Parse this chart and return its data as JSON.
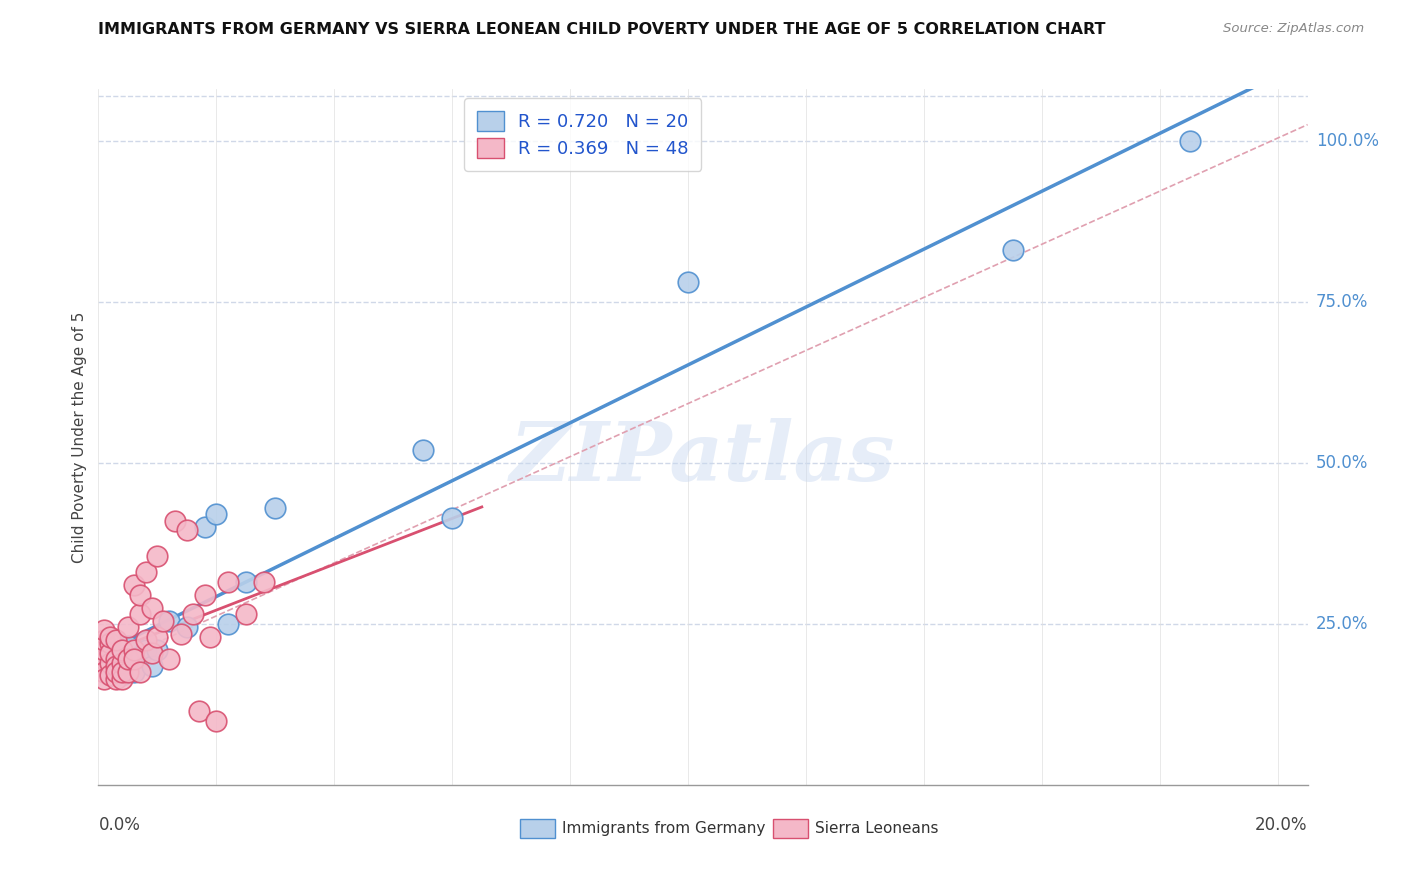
{
  "title": "IMMIGRANTS FROM GERMANY VS SIERRA LEONEAN CHILD POVERTY UNDER THE AGE OF 5 CORRELATION CHART",
  "source": "Source: ZipAtlas.com",
  "ylabel": "Child Poverty Under the Age of 5",
  "legend_labels": [
    "Immigrants from Germany",
    "Sierra Leoneans"
  ],
  "r_blue": 0.72,
  "n_blue": 20,
  "r_pink": 0.369,
  "n_pink": 48,
  "blue_color": "#b8d0ea",
  "pink_color": "#f4b8c8",
  "blue_line_color": "#5090d0",
  "pink_line_color": "#d85070",
  "blue_edge_color": "#5090d0",
  "pink_edge_color": "#d85070",
  "watermark": "ZIPatlas",
  "blue_scatter_x": [
    0.003,
    0.004,
    0.005,
    0.006,
    0.007,
    0.008,
    0.009,
    0.01,
    0.012,
    0.015,
    0.018,
    0.02,
    0.022,
    0.025,
    0.03,
    0.055,
    0.06,
    0.1,
    0.155,
    0.185
  ],
  "blue_scatter_y": [
    0.195,
    0.17,
    0.215,
    0.175,
    0.2,
    0.21,
    0.185,
    0.21,
    0.255,
    0.245,
    0.4,
    0.42,
    0.25,
    0.315,
    0.43,
    0.52,
    0.415,
    0.78,
    0.83,
    1.0
  ],
  "pink_scatter_x": [
    0.001,
    0.001,
    0.001,
    0.001,
    0.001,
    0.001,
    0.002,
    0.002,
    0.002,
    0.002,
    0.002,
    0.003,
    0.003,
    0.003,
    0.003,
    0.003,
    0.004,
    0.004,
    0.004,
    0.004,
    0.005,
    0.005,
    0.005,
    0.006,
    0.006,
    0.006,
    0.007,
    0.007,
    0.007,
    0.008,
    0.008,
    0.009,
    0.009,
    0.01,
    0.01,
    0.011,
    0.012,
    0.013,
    0.014,
    0.015,
    0.016,
    0.017,
    0.018,
    0.019,
    0.02,
    0.022,
    0.025,
    0.028
  ],
  "pink_scatter_y": [
    0.195,
    0.21,
    0.225,
    0.175,
    0.165,
    0.24,
    0.19,
    0.22,
    0.17,
    0.205,
    0.23,
    0.165,
    0.195,
    0.185,
    0.175,
    0.225,
    0.165,
    0.19,
    0.21,
    0.175,
    0.175,
    0.195,
    0.245,
    0.21,
    0.195,
    0.31,
    0.175,
    0.265,
    0.295,
    0.225,
    0.33,
    0.205,
    0.275,
    0.23,
    0.355,
    0.255,
    0.195,
    0.41,
    0.235,
    0.395,
    0.265,
    0.115,
    0.295,
    0.23,
    0.1,
    0.315,
    0.265,
    0.315
  ],
  "xlim": [
    0.0,
    0.205
  ],
  "ylim": [
    0.0,
    1.08
  ],
  "x_ticks": [
    0.0,
    0.02,
    0.04,
    0.06,
    0.08,
    0.1,
    0.12,
    0.14,
    0.16,
    0.18,
    0.2
  ],
  "y_ticks": [
    0.25,
    0.5,
    0.75,
    1.0
  ],
  "y_tick_labels": [
    "25.0%",
    "50.0%",
    "75.0%",
    "100.0%"
  ]
}
